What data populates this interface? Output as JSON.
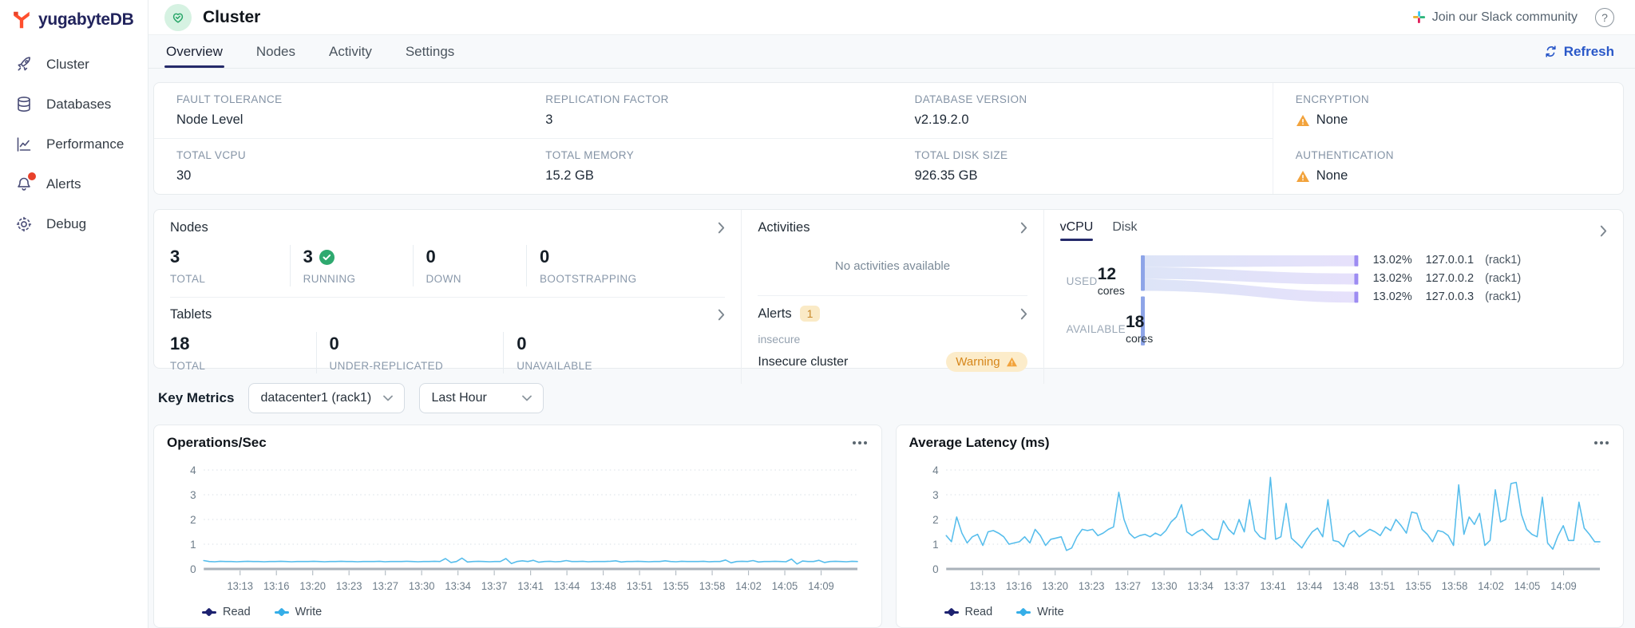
{
  "sidebar": {
    "logo_text": "yugabyteDB",
    "items": [
      {
        "label": "Cluster",
        "icon": "rocket-icon"
      },
      {
        "label": "Databases",
        "icon": "database-icon"
      },
      {
        "label": "Performance",
        "icon": "performance-chart-icon"
      },
      {
        "label": "Alerts",
        "icon": "bell-icon",
        "has_notification_dot": true
      },
      {
        "label": "Debug",
        "icon": "gear-icon"
      }
    ]
  },
  "header": {
    "title": "Cluster",
    "slack_link": "Join our Slack community",
    "help_icon": "?"
  },
  "tabbar": {
    "tabs": [
      "Overview",
      "Nodes",
      "Activity",
      "Settings"
    ],
    "active_tab": "Overview",
    "refresh_label": "Refresh"
  },
  "overview": {
    "fields": [
      {
        "label": "FAULT TOLERANCE",
        "value": "Node Level"
      },
      {
        "label": "REPLICATION FACTOR",
        "value": "3"
      },
      {
        "label": "DATABASE VERSION",
        "value": "v2.19.2.0"
      },
      {
        "label": "ENCRYPTION",
        "value": "None",
        "warning": true
      },
      {
        "label": "TOTAL VCPU",
        "value": "30"
      },
      {
        "label": "TOTAL MEMORY",
        "value": "15.2 GB"
      },
      {
        "label": "TOTAL DISK SIZE",
        "value": "926.35 GB"
      },
      {
        "label": "AUTHENTICATION",
        "value": "None",
        "warning": true
      }
    ]
  },
  "panels": {
    "nodes": {
      "title": "Nodes",
      "stats": [
        {
          "value": "3",
          "label": "TOTAL"
        },
        {
          "value": "3",
          "label": "RUNNING",
          "check": true
        },
        {
          "value": "0",
          "label": "DOWN"
        },
        {
          "value": "0",
          "label": "BOOTSTRAPPING"
        }
      ]
    },
    "tablets": {
      "title": "Tablets",
      "stats": [
        {
          "value": "18",
          "label": "TOTAL"
        },
        {
          "value": "0",
          "label": "UNDER-REPLICATED"
        },
        {
          "value": "0",
          "label": "UNAVAILABLE"
        }
      ]
    },
    "activities": {
      "title": "Activities",
      "empty_text": "No activities available"
    },
    "alerts": {
      "title": "Alerts",
      "count": "1",
      "item_category": "insecure",
      "item_name": "Insecure cluster",
      "item_status": "Warning"
    },
    "usage": {
      "tabs": [
        "vCPU",
        "Disk"
      ],
      "active_tab": "vCPU",
      "used": {
        "label": "USED",
        "value": "12",
        "unit": "cores"
      },
      "available": {
        "label": "AVAILABLE",
        "value": "18",
        "unit": "cores"
      },
      "flows": [
        {
          "percent": "13.02%",
          "node": "127.0.0.1",
          "zone": "(rack1)"
        },
        {
          "percent": "13.02%",
          "node": "127.0.0.2",
          "zone": "(rack1)"
        },
        {
          "percent": "13.02%",
          "node": "127.0.0.3",
          "zone": "(rack1)"
        }
      ]
    }
  },
  "key_metrics": {
    "label": "Key Metrics",
    "region_select": "datacenter1 (rack1)",
    "time_select": "Last Hour"
  },
  "chart_data": [
    {
      "type": "line",
      "title": "Operations/Sec",
      "xlabel": "",
      "ylabel": "",
      "ylim": [
        0,
        4
      ],
      "y_ticks": [
        0,
        1,
        2,
        3,
        4
      ],
      "grid": "dotted-horizontal",
      "legend_position": "bottom-left",
      "x_ticks": [
        "13:13",
        "13:16",
        "13:20",
        "13:23",
        "13:27",
        "13:30",
        "13:34",
        "13:37",
        "13:41",
        "13:44",
        "13:48",
        "13:51",
        "13:55",
        "13:58",
        "14:02",
        "14:05",
        "14:09"
      ],
      "series": [
        {
          "name": "Read",
          "color": "#1d2270",
          "values": []
        },
        {
          "name": "Write",
          "color": "#56bdec",
          "values": [
            0.34,
            0.3,
            0.29,
            0.31,
            0.3,
            0.3,
            0.29,
            0.3,
            0.31,
            0.3,
            0.3,
            0.29,
            0.3,
            0.3,
            0.31,
            0.3,
            0.29,
            0.3,
            0.3,
            0.3,
            0.31,
            0.3,
            0.29,
            0.3,
            0.3,
            0.31,
            0.3,
            0.3,
            0.29,
            0.3,
            0.3,
            0.3,
            0.31,
            0.29,
            0.3,
            0.3,
            0.3,
            0.31,
            0.3,
            0.29,
            0.3,
            0.3,
            0.31,
            0.3,
            0.42,
            0.26,
            0.3,
            0.44,
            0.28,
            0.3,
            0.31,
            0.3,
            0.29,
            0.3,
            0.3,
            0.42,
            0.22,
            0.3,
            0.33,
            0.3,
            0.35,
            0.27,
            0.3,
            0.31,
            0.29,
            0.3,
            0.34,
            0.3,
            0.3,
            0.31,
            0.29,
            0.3,
            0.3,
            0.3,
            0.31,
            0.33,
            0.28,
            0.3,
            0.3,
            0.31,
            0.3,
            0.29,
            0.3,
            0.3,
            0.33,
            0.3,
            0.29,
            0.31,
            0.3,
            0.3,
            0.3,
            0.31,
            0.29,
            0.3,
            0.3,
            0.36,
            0.25,
            0.3,
            0.31,
            0.3,
            0.34,
            0.28,
            0.3,
            0.3,
            0.31,
            0.3,
            0.29,
            0.4,
            0.2,
            0.32,
            0.3,
            0.3,
            0.35,
            0.26,
            0.3,
            0.31,
            0.3,
            0.29,
            0.31,
            0.3
          ]
        }
      ]
    },
    {
      "type": "line",
      "title": "Average Latency (ms)",
      "xlabel": "",
      "ylabel": "",
      "ylim": [
        0,
        4
      ],
      "y_ticks": [
        0,
        1,
        2,
        3,
        4
      ],
      "grid": "dotted-horizontal",
      "legend_position": "bottom-left",
      "x_ticks": [
        "13:13",
        "13:16",
        "13:20",
        "13:23",
        "13:27",
        "13:30",
        "13:34",
        "13:37",
        "13:41",
        "13:44",
        "13:48",
        "13:51",
        "13:55",
        "13:58",
        "14:02",
        "14:05",
        "14:09"
      ],
      "series": [
        {
          "name": "Read",
          "color": "#1d2270",
          "values": []
        },
        {
          "name": "Write",
          "color": "#56bdec",
          "values": [
            1.35,
            1.1,
            2.1,
            1.45,
            1.05,
            1.3,
            1.4,
            0.95,
            1.5,
            1.55,
            1.45,
            1.3,
            1.0,
            1.05,
            1.1,
            1.3,
            1.05,
            1.6,
            1.35,
            0.95,
            1.2,
            1.25,
            1.3,
            0.75,
            0.85,
            1.3,
            1.6,
            1.55,
            1.6,
            1.35,
            1.45,
            1.6,
            1.7,
            3.1,
            2.0,
            1.45,
            1.25,
            1.35,
            1.4,
            1.3,
            1.45,
            1.35,
            1.55,
            1.9,
            2.1,
            2.6,
            1.5,
            1.35,
            1.5,
            1.6,
            1.4,
            1.2,
            1.2,
            1.95,
            1.6,
            1.4,
            2.0,
            1.5,
            2.8,
            1.55,
            1.3,
            1.2,
            3.7,
            1.2,
            1.3,
            2.65,
            1.25,
            1.05,
            0.85,
            1.2,
            1.5,
            1.65,
            1.3,
            2.8,
            1.15,
            1.1,
            0.9,
            1.4,
            1.55,
            1.3,
            1.45,
            1.6,
            1.5,
            1.35,
            1.7,
            1.55,
            2.0,
            1.75,
            1.45,
            2.3,
            2.25,
            1.6,
            1.4,
            1.1,
            1.55,
            1.5,
            1.35,
            0.95,
            3.4,
            1.4,
            2.1,
            1.8,
            2.25,
            0.95,
            1.15,
            3.2,
            1.9,
            2.0,
            3.45,
            3.5,
            2.2,
            1.6,
            1.4,
            1.3,
            2.9,
            1.05,
            0.8,
            1.35,
            1.75,
            1.15,
            1.15,
            2.7,
            1.65,
            1.4,
            1.1,
            1.1
          ]
        }
      ]
    }
  ],
  "colors": {
    "brand_navy": "#21235c",
    "accent_blue": "#2a58c8",
    "logo_orange": "#ff4f2e",
    "tab_underline": "#252a6a",
    "warning_text": "#d6861a",
    "warning_bg": "#fcecca",
    "warning_triangle": "#f2a33c",
    "success_green": "#2ea96f",
    "avatar_bg": "#d6f2e2",
    "chart_write_blue": "#56bdec",
    "chart_read_navy": "#1d2270",
    "sankey_source_bar": "#8da4e8",
    "sankey_target_bar": "#9d8cf2",
    "sankey_flow_from": "#dde4f7",
    "sankey_flow_to": "#e6e1fb",
    "page_bg": "#f7f9fb",
    "card_border": "#e7ebee"
  }
}
